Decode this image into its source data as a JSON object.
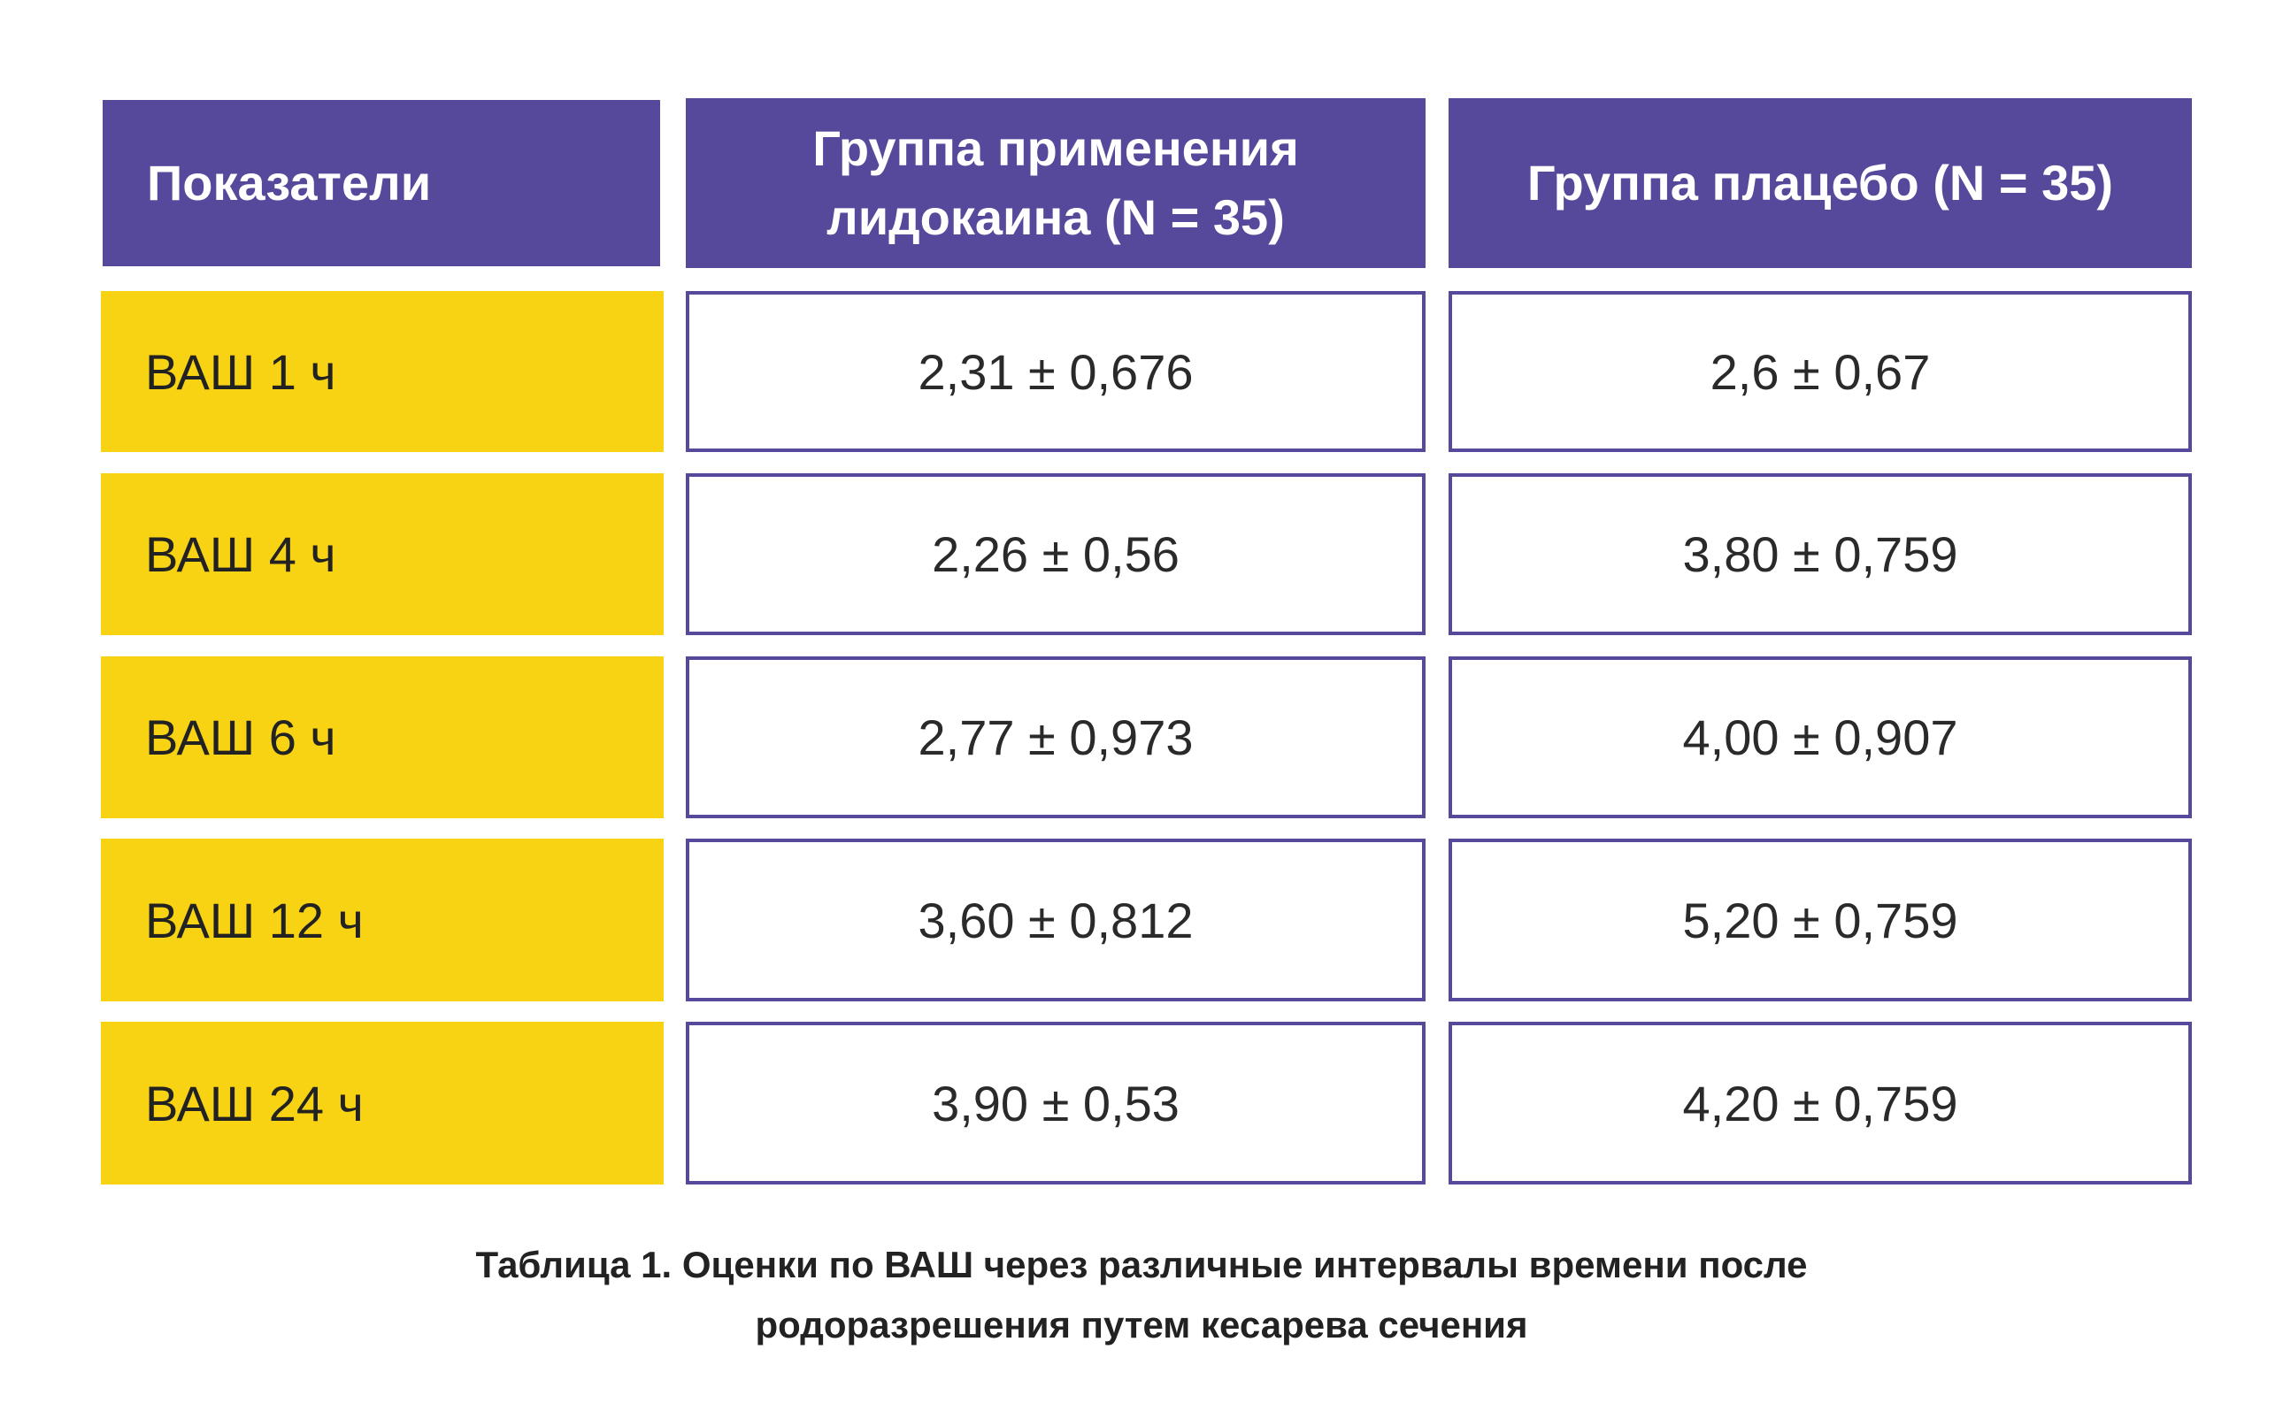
{
  "table": {
    "headers": [
      "Показатели",
      [
        "Группа применения",
        "лидокаина (N = 35)"
      ],
      "Группа плацебо (N = 35)"
    ],
    "rows": [
      {
        "label": "ВАШ 1 ч",
        "lidocaine": "2,31 ± 0,676",
        "placebo": "2,6 ± 0,67"
      },
      {
        "label": "ВАШ 4 ч",
        "lidocaine": "2,26 ± 0,56",
        "placebo": "3,80 ± 0,759"
      },
      {
        "label": "ВАШ 6 ч",
        "lidocaine": "2,77 ± 0,973",
        "placebo": "4,00 ± 0,907"
      },
      {
        "label": "ВАШ 12 ч",
        "lidocaine": "3,60 ± 0,812",
        "placebo": "5,20 ± 0,759"
      },
      {
        "label": "ВАШ 24 ч",
        "lidocaine": "3,90 ± 0,53",
        "placebo": "4,20 ± 0,759"
      }
    ]
  },
  "caption": [
    "Таблица 1. Оценки по ВАШ через различные интервалы времени после",
    "родоразрешения путем кесарева сечения"
  ],
  "colors": {
    "header_bg": "#56489a",
    "label_bg": "#f8d313",
    "border": "#56489a"
  }
}
